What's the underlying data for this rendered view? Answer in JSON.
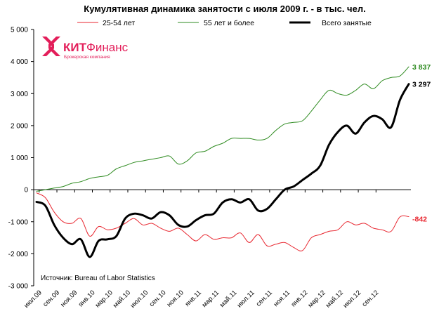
{
  "colors": {
    "series_25_54": "#e8262f",
    "series_55plus": "#2e8b20",
    "series_total": "#000000",
    "logo": "#e31e5a"
  },
  "logo": {
    "brand_kit": "КИТ",
    "brand_finans": "Финанс",
    "subtitle": "Брокерская компания",
    "icon": "kit-finance-logo-icon"
  },
  "source_note": "Источник: Bureau of Labor Statistics",
  "chart_data": {
    "type": "line",
    "title": "Кумулятивная динамика занятости с июля 2009 г. - в тыс. чел.",
    "xlabel": "",
    "ylabel": "",
    "ylim": [
      -3000,
      5000
    ],
    "yticks": [
      -3000,
      -2000,
      -1000,
      0,
      1000,
      2000,
      3000,
      4000,
      5000
    ],
    "ytick_labels": [
      "-3 000",
      "-2 000",
      "-1 000",
      "0",
      "1 000",
      "2 000",
      "3 000",
      "4 000",
      "5 000"
    ],
    "grid": false,
    "legend_position": "top",
    "x_tick_labels": [
      "июл.09",
      "сен.09",
      "ноя.09",
      "янв.10",
      "мар.10",
      "май.10",
      "июл.10",
      "сен.10",
      "ноя.10",
      "янв.11",
      "мар.11",
      "май.11",
      "июл.11",
      "сен.11",
      "ноя.11",
      "янв.12",
      "мар.12",
      "май.12",
      "июл.12",
      "сен.12"
    ],
    "series": [
      {
        "name": "25-54 лет",
        "color": "#e8262f",
        "width": 1,
        "end_label": "-842",
        "values": [
          -100,
          -250,
          -700,
          -1000,
          -1050,
          -900,
          -1450,
          -1150,
          -1250,
          -1200,
          -1050,
          -900,
          -1100,
          -1050,
          -1200,
          -1300,
          -1200,
          -1400,
          -1600,
          -1400,
          -1550,
          -1500,
          -1500,
          -1350,
          -1650,
          -1400,
          -1750,
          -1700,
          -1650,
          -1800,
          -1900,
          -1500,
          -1400,
          -1300,
          -1250,
          -1000,
          -1100,
          -1050,
          -1200,
          -1250,
          -1300,
          -850,
          -842
        ]
      },
      {
        "name": "55 лет и более",
        "color": "#2e8b20",
        "width": 1,
        "end_label": "3 837",
        "values": [
          -50,
          0,
          50,
          100,
          200,
          250,
          350,
          400,
          450,
          650,
          750,
          850,
          900,
          950,
          1000,
          1050,
          800,
          900,
          1150,
          1200,
          1350,
          1450,
          1600,
          1600,
          1600,
          1550,
          1600,
          1850,
          2050,
          2100,
          2150,
          2450,
          2800,
          3100,
          3000,
          2950,
          3100,
          3300,
          3150,
          3400,
          3500,
          3550,
          3837
        ]
      },
      {
        "name": "Всего занятые",
        "color": "#000000",
        "width": 3,
        "end_label": "3 297",
        "values": [
          -380,
          -500,
          -1100,
          -1500,
          -1700,
          -1550,
          -2100,
          -1600,
          -1550,
          -1450,
          -900,
          -750,
          -800,
          -900,
          -700,
          -800,
          -1100,
          -1150,
          -950,
          -800,
          -750,
          -400,
          -300,
          -400,
          -300,
          -650,
          -600,
          -300,
          0,
          100,
          300,
          500,
          750,
          1400,
          1800,
          2000,
          1750,
          2100,
          2300,
          2200,
          1950,
          2800,
          3297
        ]
      }
    ]
  }
}
